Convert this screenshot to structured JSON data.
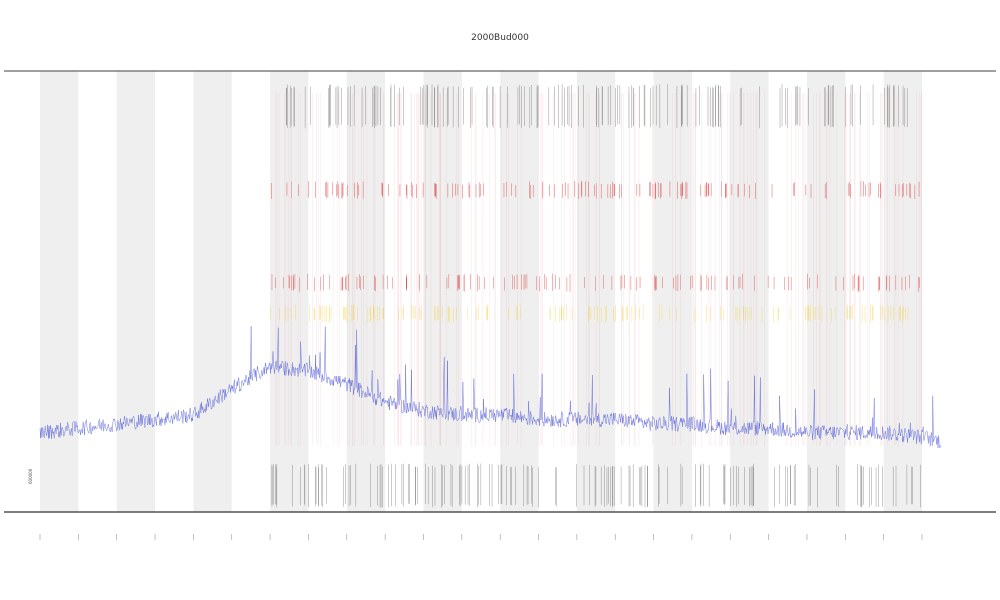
{
  "chart_data": {
    "type": "line",
    "title": "2000Bud000",
    "xlabel": "",
    "ylabel": "",
    "x": [
      0,
      1,
      2,
      3,
      4,
      5,
      6,
      7,
      8,
      9,
      10,
      11,
      12,
      13,
      14,
      15,
      16,
      17,
      18,
      19,
      20,
      21,
      22,
      23
    ],
    "xlim": [
      -0.5,
      24
    ],
    "ylim": [
      0,
      1
    ],
    "grid": false,
    "shaded_bands": [
      [
        0,
        1
      ],
      [
        2,
        3
      ],
      [
        4,
        5
      ],
      [
        6,
        7
      ],
      [
        8,
        9
      ],
      [
        10,
        11
      ],
      [
        12,
        13
      ],
      [
        14,
        15
      ],
      [
        16,
        17
      ],
      [
        18,
        19
      ],
      [
        20,
        21
      ],
      [
        22,
        23
      ]
    ],
    "series": [
      {
        "color": "#4a55d6",
        "profile_x": [
          0,
          1,
          2,
          3,
          4,
          5,
          6,
          7,
          8,
          9,
          10,
          11,
          12,
          13,
          14,
          15,
          16,
          17,
          18,
          19,
          20,
          21,
          22,
          23,
          23.5
        ],
        "profile_y": [
          0.18,
          0.19,
          0.2,
          0.21,
          0.22,
          0.28,
          0.33,
          0.32,
          0.29,
          0.25,
          0.23,
          0.22,
          0.22,
          0.21,
          0.21,
          0.21,
          0.2,
          0.2,
          0.19,
          0.19,
          0.18,
          0.18,
          0.18,
          0.17,
          0.16
        ]
      }
    ],
    "event_rows": [
      {
        "color": "#d62f2f",
        "level": 0.73
      },
      {
        "color": "#d63a3a",
        "level": 0.52
      },
      {
        "color": "#f3d54a",
        "level": 0.45
      },
      {
        "color": "#444444",
        "level": 0.92
      },
      {
        "color": "#444444",
        "level": 0.06
      }
    ],
    "legend": {
      "placement": "bottom-left",
      "entries": [
        "000000"
      ]
    }
  }
}
